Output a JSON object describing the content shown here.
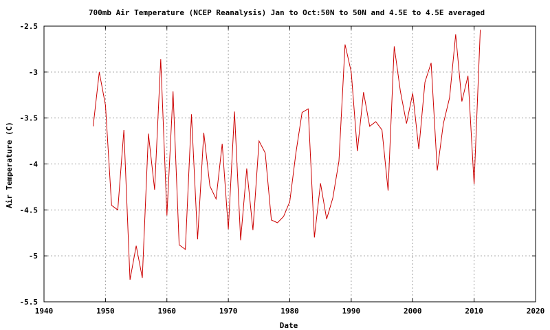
{
  "chart_data": {
    "type": "line",
    "title": "700mb Air Temperature (NCEP Reanalysis) Jan to Oct:50N to 50N and 4.5E to 4.5E averaged",
    "xlabel": "Date",
    "ylabel": "Air Temperature (C)",
    "xlim": [
      1940,
      2020
    ],
    "ylim": [
      -5.5,
      -2.5
    ],
    "xticks": [
      1940,
      1950,
      1960,
      1970,
      1980,
      1990,
      2000,
      2010,
      2020
    ],
    "yticks": [
      -2.5,
      -3,
      -3.5,
      -4,
      -4.5,
      -5,
      -5.5
    ],
    "xtick_labels": [
      "1940",
      "1950",
      "1960",
      "1970",
      "1980",
      "1990",
      "2000",
      "2010",
      "2020"
    ],
    "ytick_labels": [
      "-2.5",
      "-3",
      "-3.5",
      "-4",
      "-4.5",
      "-5",
      "-5.5"
    ],
    "grid": true,
    "legend": "none",
    "line_color": "#cc0000",
    "series": [
      {
        "x": [
          1948,
          1949,
          1950,
          1951,
          1952,
          1953,
          1954,
          1955,
          1956,
          1957,
          1958,
          1959,
          1960,
          1961,
          1962,
          1963,
          1964,
          1965,
          1966,
          1967,
          1968,
          1969,
          1970,
          1971,
          1972,
          1973,
          1974,
          1975,
          1976,
          1977,
          1978,
          1979,
          1980,
          1981,
          1982,
          1983,
          1984,
          1985,
          1986,
          1987,
          1988,
          1989,
          1990,
          1991,
          1992,
          1993,
          1994,
          1995,
          1996,
          1997,
          1998,
          1999,
          2000,
          2001,
          2002,
          2003,
          2004,
          2005,
          2006,
          2007,
          2008,
          2009,
          2010,
          2011
        ],
        "values": [
          -3.59,
          -3.0,
          -3.36,
          -4.45,
          -4.5,
          -3.63,
          -5.26,
          -4.89,
          -5.24,
          -3.67,
          -4.28,
          -2.86,
          -4.56,
          -3.21,
          -4.88,
          -4.93,
          -3.46,
          -4.82,
          -3.66,
          -4.24,
          -4.38,
          -3.78,
          -4.71,
          -3.43,
          -4.83,
          -4.05,
          -4.72,
          -3.75,
          -3.88,
          -4.61,
          -4.64,
          -4.57,
          -4.41,
          -3.88,
          -3.44,
          -3.4,
          -4.8,
          -4.21,
          -4.6,
          -4.37,
          -3.97,
          -2.7,
          -3.0,
          -3.86,
          -3.22,
          -3.59,
          -3.54,
          -3.63,
          -4.29,
          -2.72,
          -3.21,
          -3.56,
          -3.23,
          -3.84,
          -3.11,
          -2.9,
          -4.07,
          -3.56,
          -3.28,
          -2.59,
          -3.32,
          -3.04,
          -4.22,
          -2.54
        ]
      }
    ]
  }
}
